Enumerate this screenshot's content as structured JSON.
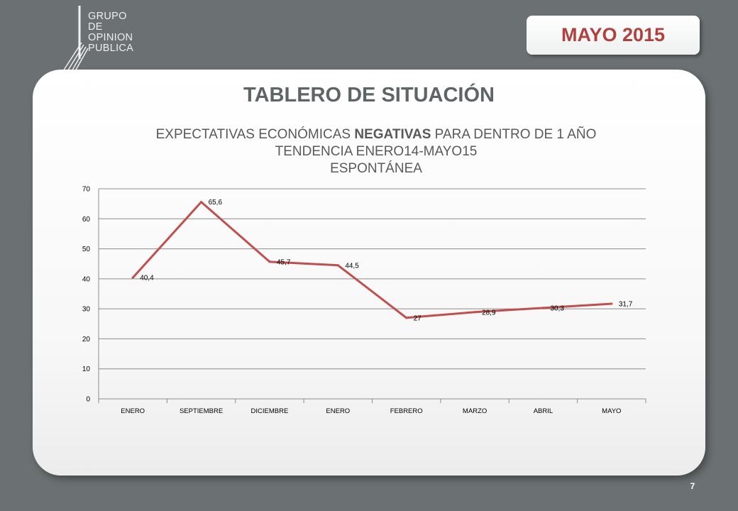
{
  "header": {
    "logo_lines": [
      "GRUPO",
      "DE",
      "OPINION",
      "PUBLICA"
    ],
    "date_badge": "MAYO 2015"
  },
  "slide": {
    "title": "TABLERO DE SITUACIÓN",
    "chart_title_line1_pre": "EXPECTATIVAS ECONÓMICAS ",
    "chart_title_line1_bold": "NEGATIVAS",
    "chart_title_line1_post": " PARA DENTRO DE 1 AÑO",
    "chart_title_line2": "TENDENCIA ENERO14-MAYO15",
    "chart_title_line3": "ESPONTÁNEA",
    "page_number": "7"
  },
  "colors": {
    "line": "#c0504d",
    "accent_text": "#b0413e",
    "background": "#6b7172"
  },
  "chart_data": {
    "type": "line",
    "title": "EXPECTATIVAS ECONÓMICAS NEGATIVAS PARA DENTRO DE 1 AÑO TENDENCIA ENERO14-MAYO15 ESPONTÁNEA",
    "categories": [
      "ENERO",
      "SEPTIEMBRE",
      "DICIEMBRE",
      "ENERO",
      "FEBRERO",
      "MARZO",
      "ABRIL",
      "MAYO"
    ],
    "series": [
      {
        "values": [
          40.4,
          65.6,
          45.7,
          44.5,
          27,
          28.9,
          30.3,
          31.7
        ]
      }
    ],
    "data_labels": [
      "40,4",
      "65,6",
      "45,7",
      "44,5",
      "27",
      "28,9",
      "30,3",
      "31,7"
    ],
    "y_ticks": [
      0,
      10,
      20,
      30,
      40,
      50,
      60,
      70
    ],
    "ylim": [
      0,
      70
    ],
    "xlabel": "",
    "ylabel": "",
    "grid": true,
    "legend": "none"
  }
}
